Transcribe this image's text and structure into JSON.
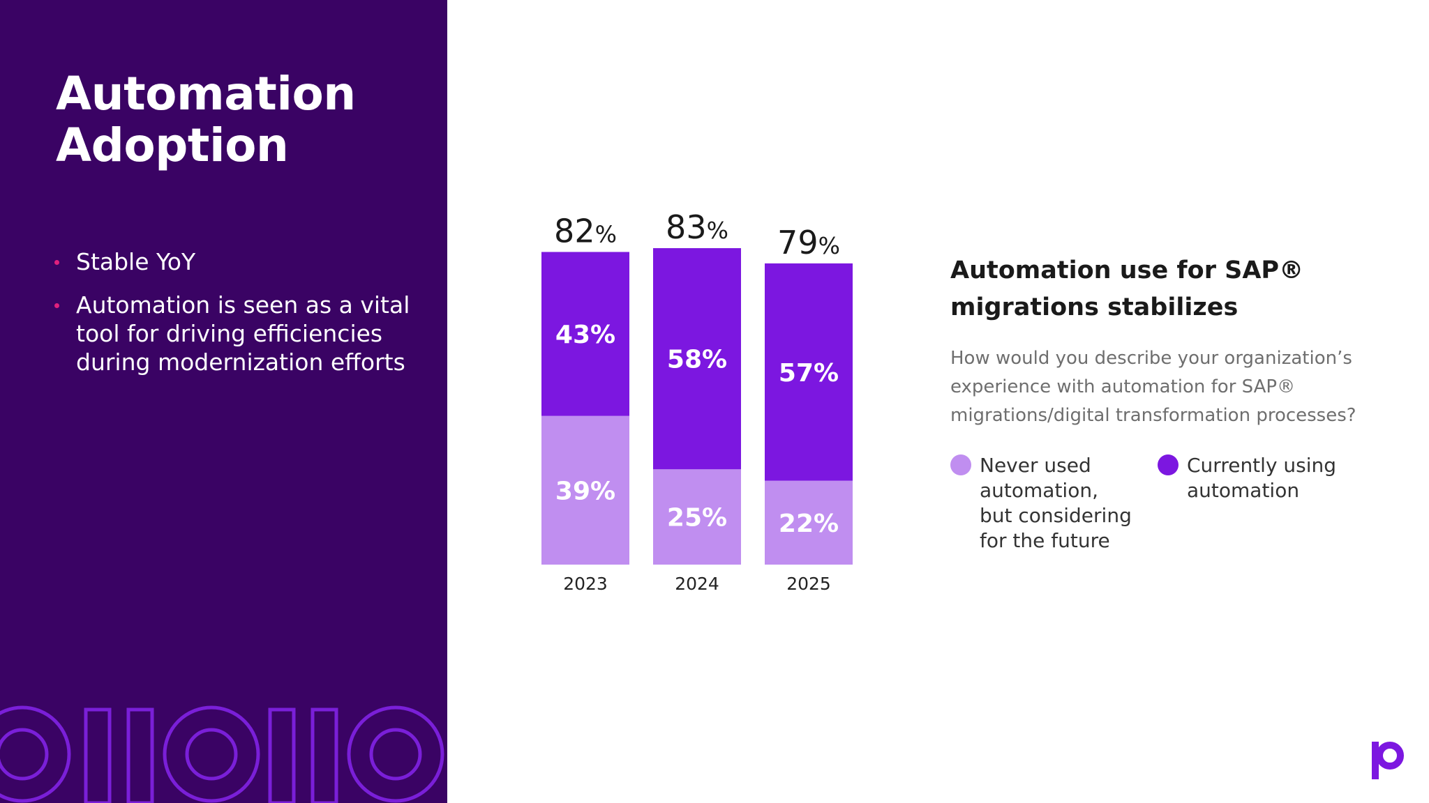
{
  "slide": {
    "title_line1": "Automation",
    "title_line2": "Adoption",
    "bullets": [
      "Stable YoY",
      "Automation is seen as a vital tool for driving efficiencies during modernization efforts"
    ]
  },
  "chart_heading": {
    "line1": "Automation use for SAP®",
    "line2": "migrations stabilizes"
  },
  "question": "How would you describe your organization’s experience with automation for SAP® migrations/digital transformation processes?",
  "colors": {
    "panel": "#3a0364",
    "currently_using": "#7c17e0",
    "considering": "#c08ef0",
    "accent_bullet": "#e0217d",
    "decor": "#7a1fd8"
  },
  "icons": {
    "bullet": "bullet-dot-icon",
    "logo": "brand-p-logo-icon",
    "decor": "circles-bars-decoration"
  },
  "chart_data": {
    "type": "bar",
    "stacked": true,
    "categories": [
      "2023",
      "2024",
      "2025"
    ],
    "series": [
      {
        "name": "Never used automation, but considering for the future",
        "values": [
          39,
          25,
          22
        ],
        "labels": [
          "39%",
          "25%",
          "22%"
        ],
        "color": "#c08ef0"
      },
      {
        "name": "Currently using automation",
        "values": [
          43,
          58,
          57
        ],
        "labels": [
          "43%",
          "58%",
          "57%"
        ],
        "color": "#7c17e0"
      }
    ],
    "totals": [
      82,
      83,
      79
    ],
    "total_labels": [
      "82",
      "83",
      "79"
    ],
    "percent_sign": "%",
    "ylim": [
      0,
      100
    ],
    "grid": false,
    "legend_position": "right",
    "title": "",
    "xlabel": "",
    "ylabel": ""
  }
}
